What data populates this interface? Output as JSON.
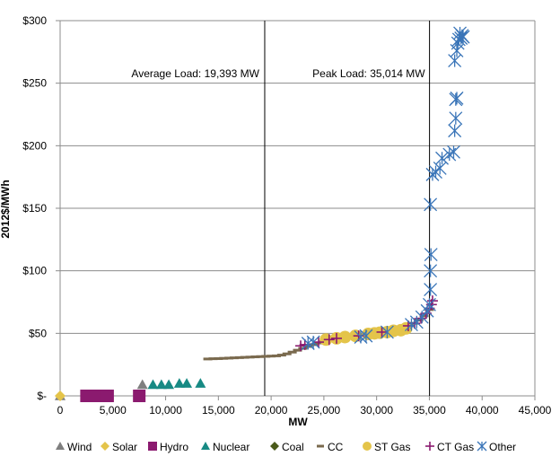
{
  "chart_data": {
    "type": "scatter",
    "xlabel": "MW",
    "ylabel": "2012$/MWh",
    "xlim": [
      0,
      45000
    ],
    "ylim": [
      0,
      300
    ],
    "x_ticks": [
      0,
      5000,
      10000,
      15000,
      20000,
      25000,
      30000,
      35000,
      40000,
      45000
    ],
    "x_tick_labels": [
      "0",
      "5,000",
      "10,000",
      "15,000",
      "20,000",
      "25,000",
      "30,000",
      "35,000",
      "40,000",
      "45,000"
    ],
    "y_ticks": [
      0,
      50,
      100,
      150,
      200,
      250,
      300
    ],
    "y_tick_labels": [
      "$-",
      "$50",
      "$100",
      "$150",
      "$200",
      "$250",
      "$300"
    ],
    "grid": "horizontal",
    "legend_position": "bottom",
    "reference_lines": [
      {
        "x": 19393,
        "label": "Average  Load:  19,393  MW"
      },
      {
        "x": 35014,
        "label": "Peak Load:  35,014  MW"
      }
    ],
    "series": [
      {
        "name": "Wind",
        "marker": "triangle",
        "color": "#7f7f7f",
        "points": [
          [
            0,
            0
          ],
          [
            7800,
            9
          ]
        ]
      },
      {
        "name": "Solar",
        "marker": "diamond",
        "color": "#e4c44a",
        "points": [
          [
            0,
            0
          ]
        ]
      },
      {
        "name": "Hydro",
        "marker": "square",
        "color": "#8b1a6f",
        "points": [
          [
            2500,
            0
          ],
          [
            3500,
            0
          ],
          [
            4500,
            0
          ],
          [
            7500,
            0
          ]
        ]
      },
      {
        "name": "Nuclear",
        "marker": "triangle",
        "color": "#178a84",
        "points": [
          [
            8800,
            9
          ],
          [
            9600,
            9
          ],
          [
            10300,
            9
          ],
          [
            11300,
            10
          ],
          [
            12000,
            10
          ],
          [
            13300,
            10
          ]
        ]
      },
      {
        "name": "Coal",
        "marker": "diamond",
        "color": "#4a5a1a",
        "points": []
      },
      {
        "name": "CC",
        "marker": "dash",
        "color": "#7a6a4e",
        "points": [
          [
            14000,
            29.5
          ],
          [
            14500,
            29.7
          ],
          [
            15000,
            29.8
          ],
          [
            15500,
            30
          ],
          [
            16000,
            30.2
          ],
          [
            16500,
            30.4
          ],
          [
            17000,
            30.6
          ],
          [
            17500,
            30.8
          ],
          [
            18000,
            31
          ],
          [
            18500,
            31.2
          ],
          [
            19000,
            31.4
          ],
          [
            19500,
            31.6
          ],
          [
            20000,
            31.8
          ],
          [
            20500,
            32
          ],
          [
            21000,
            32.6
          ],
          [
            21500,
            33.6
          ],
          [
            22000,
            35
          ],
          [
            22500,
            36.5
          ],
          [
            23000,
            38
          ],
          [
            23500,
            39.5
          ],
          [
            24000,
            41
          ],
          [
            24500,
            42.3
          ],
          [
            25000,
            43.5
          ],
          [
            25500,
            44.5
          ],
          [
            26000,
            45.3
          ],
          [
            26500,
            46
          ],
          [
            27000,
            46.7
          ],
          [
            27500,
            47.4
          ],
          [
            28000,
            48
          ],
          [
            28500,
            48.6
          ],
          [
            29000,
            49.2
          ],
          [
            29500,
            49.8
          ],
          [
            30000,
            50.4
          ],
          [
            30500,
            51
          ],
          [
            31000,
            51.6
          ],
          [
            31500,
            52.3
          ],
          [
            32000,
            53.2
          ],
          [
            32500,
            54.5
          ],
          [
            33000,
            56
          ],
          [
            33500,
            58
          ],
          [
            34000,
            60.5
          ],
          [
            34500,
            64
          ],
          [
            35000,
            69
          ]
        ]
      },
      {
        "name": "ST Gas",
        "marker": "circle",
        "color": "#e4c44a",
        "points": [
          [
            25200,
            45
          ],
          [
            26200,
            46
          ],
          [
            27000,
            47
          ],
          [
            28000,
            48
          ],
          [
            29200,
            49.5
          ],
          [
            29800,
            50
          ],
          [
            30300,
            50.5
          ],
          [
            31000,
            51
          ],
          [
            31600,
            52
          ],
          [
            32300,
            52.5
          ],
          [
            32800,
            54
          ]
        ]
      },
      {
        "name": "CT Gas",
        "marker": "plus",
        "color": "#8b1a6f",
        "points": [
          [
            22800,
            40
          ],
          [
            23200,
            41
          ],
          [
            24500,
            43
          ],
          [
            25500,
            45
          ],
          [
            26200,
            46
          ],
          [
            28300,
            48
          ],
          [
            30500,
            51
          ],
          [
            33000,
            56
          ],
          [
            33600,
            58
          ],
          [
            34200,
            62
          ],
          [
            34700,
            66
          ],
          [
            35000,
            70
          ],
          [
            35200,
            73
          ],
          [
            35300,
            76
          ]
        ]
      },
      {
        "name": "Other",
        "marker": "x",
        "color": "#3a75b8",
        "points": [
          [
            23500,
            42
          ],
          [
            24000,
            43
          ],
          [
            28500,
            47
          ],
          [
            29000,
            48
          ],
          [
            31000,
            51
          ],
          [
            33300,
            57
          ],
          [
            33800,
            59
          ],
          [
            34300,
            63
          ],
          [
            34800,
            68
          ],
          [
            35000,
            73
          ],
          [
            35100,
            85
          ],
          [
            35100,
            100
          ],
          [
            35150,
            113
          ],
          [
            35100,
            153
          ],
          [
            35300,
            177
          ],
          [
            35600,
            179
          ],
          [
            36000,
            182
          ],
          [
            36200,
            190
          ],
          [
            36900,
            193
          ],
          [
            37300,
            195
          ],
          [
            37400,
            212
          ],
          [
            37500,
            222
          ],
          [
            37500,
            237
          ],
          [
            37600,
            238
          ],
          [
            37400,
            268
          ],
          [
            37600,
            276
          ],
          [
            37700,
            282
          ],
          [
            37800,
            285
          ],
          [
            38000,
            286
          ],
          [
            38100,
            288
          ],
          [
            38200,
            287
          ],
          [
            37900,
            290
          ]
        ]
      }
    ]
  }
}
